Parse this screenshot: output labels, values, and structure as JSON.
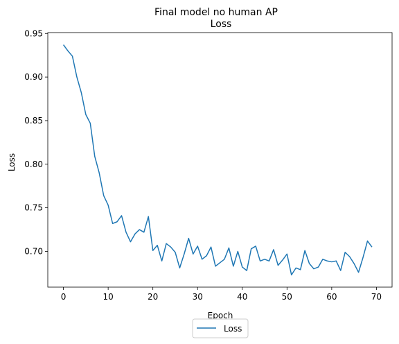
{
  "chart_data": {
    "type": "line",
    "title": "Final model no human AP",
    "subtitle": "Loss",
    "xlabel": "Epoch",
    "ylabel": "Loss",
    "xlim": [
      -3.5,
      73.5
    ],
    "ylim": [
      0.659,
      0.951
    ],
    "xticks": [
      0,
      10,
      20,
      30,
      40,
      50,
      60,
      70
    ],
    "yticks": [
      0.7,
      0.75,
      0.8,
      0.85,
      0.9,
      0.95
    ],
    "ytick_labels": [
      "0.70",
      "0.75",
      "0.80",
      "0.85",
      "0.90",
      "0.95"
    ],
    "legend_position": "bottom-center-outside",
    "grid": false,
    "series": [
      {
        "name": "Loss",
        "color": "#1f77b4",
        "x": [
          0,
          1,
          2,
          3,
          4,
          5,
          6,
          7,
          8,
          9,
          10,
          11,
          12,
          13,
          14,
          15,
          16,
          17,
          18,
          19,
          20,
          21,
          22,
          23,
          24,
          25,
          26,
          27,
          28,
          29,
          30,
          31,
          32,
          33,
          34,
          35,
          36,
          37,
          38,
          39,
          40,
          41,
          42,
          43,
          44,
          45,
          46,
          47,
          48,
          49,
          50,
          51,
          52,
          53,
          54,
          55,
          56,
          57,
          58,
          59,
          60,
          61,
          62,
          63,
          64,
          65,
          66,
          67,
          68,
          69
        ],
        "values": [
          0.937,
          0.93,
          0.924,
          0.9,
          0.882,
          0.857,
          0.847,
          0.809,
          0.79,
          0.764,
          0.753,
          0.732,
          0.734,
          0.741,
          0.722,
          0.711,
          0.72,
          0.725,
          0.722,
          0.74,
          0.701,
          0.707,
          0.689,
          0.709,
          0.705,
          0.699,
          0.681,
          0.697,
          0.715,
          0.697,
          0.706,
          0.691,
          0.695,
          0.705,
          0.683,
          0.687,
          0.691,
          0.704,
          0.683,
          0.7,
          0.682,
          0.678,
          0.703,
          0.706,
          0.689,
          0.691,
          0.689,
          0.702,
          0.684,
          0.69,
          0.697,
          0.673,
          0.681,
          0.679,
          0.701,
          0.686,
          0.68,
          0.682,
          0.691,
          0.689,
          0.688,
          0.689,
          0.678,
          0.699,
          0.694,
          0.686,
          0.676,
          0.693,
          0.712,
          0.705
        ]
      }
    ]
  }
}
